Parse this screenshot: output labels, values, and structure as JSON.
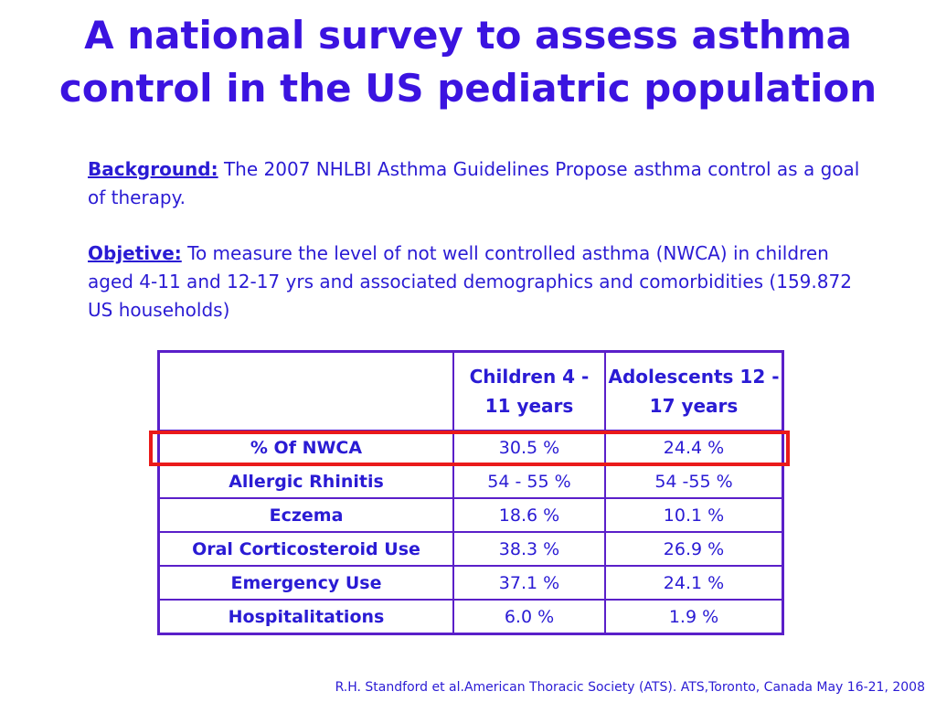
{
  "slide": {
    "title_line1": "A national survey to assess asthma",
    "title_line2": "control in the US pediatric population",
    "background_label": "Background:",
    "background_text": " The 2007 NHLBI Asthma Guidelines Propose asthma control as a goal of therapy.",
    "objective_label": "Objetive:",
    "objective_text": " To measure the level of not well controlled asthma (NWCA) in children aged 4-11 and 12-17 yrs and associated demographics and comorbidities (159.872 US households)",
    "citation": "R.H. Standford et al.American Thoracic Society (ATS). ATS,Toronto, Canada May 16-21, 2008"
  },
  "table": {
    "headers": [
      "",
      "Children 4 - 11 years",
      "Adolescents 12 - 17 years"
    ],
    "rows": [
      {
        "label": "% Of NWCA",
        "children": "30.5 %",
        "adolescents": "24.4 %"
      },
      {
        "label": "Allergic Rhinitis",
        "children": "54  - 55 %",
        "adolescents": "54 -55 %"
      },
      {
        "label": "Eczema",
        "children": "18.6 %",
        "adolescents": "10.1 %"
      },
      {
        "label": "Oral Corticosteroid Use",
        "children": "38.3 %",
        "adolescents": "26.9 %"
      },
      {
        "label": "Emergency Use",
        "children": "37.1 %",
        "adolescents": "24.1 %"
      },
      {
        "label": "Hospitalitations",
        "children": "6.0 %",
        "adolescents": "1.9 %"
      }
    ]
  },
  "colors": {
    "text": "#2a1bd4",
    "title": "#3b13e0",
    "table_border": "#5a1fc9",
    "highlight": "#ea1a1a"
  }
}
